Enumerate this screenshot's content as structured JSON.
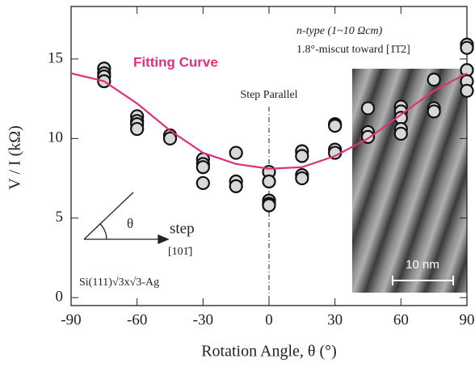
{
  "chart_data": {
    "type": "scatter",
    "x_label": "Rotation Angle, θ (°)",
    "y_label": "V / I (kΩ)",
    "xlim": [
      -90,
      90
    ],
    "ylim": [
      -0.5,
      18.3
    ],
    "xticks": [
      -90,
      -60,
      -30,
      0,
      30,
      60,
      90
    ],
    "yticks": [
      0,
      5,
      10,
      15
    ],
    "annotations": {
      "doping": "n-type (1~10 Ωcm)",
      "miscut": "1.8°-miscut toward [1̄1̄2]",
      "step_parallel": "Step Parallel",
      "angle": "θ",
      "step": "step",
      "direction": "[101̄]",
      "surface": "Si(111)√3x√3-Ag",
      "scale_bar": "10 nm"
    },
    "series": [
      {
        "type": "scatter",
        "color": "#d8d8d8",
        "x": [
          -75,
          -75,
          -75,
          -75,
          -60,
          -60,
          -60,
          -60,
          -45,
          -45,
          -30,
          -30,
          -30,
          -30,
          -15,
          -15,
          -15,
          0,
          0,
          0,
          0,
          0,
          15,
          15,
          15,
          15,
          30,
          30,
          30,
          30,
          45,
          45,
          45,
          60,
          60,
          60,
          60,
          60,
          75,
          75,
          75,
          90,
          90,
          90,
          90,
          90
        ],
        "values": [
          14.4,
          14.1,
          13.9,
          13.6,
          11.4,
          11.1,
          10.9,
          10.6,
          10.2,
          10.0,
          8.7,
          8.4,
          8.2,
          7.2,
          9.1,
          7.3,
          7.0,
          7.9,
          7.3,
          6.1,
          5.9,
          5.8,
          9.2,
          8.9,
          7.7,
          7.5,
          10.9,
          10.8,
          9.3,
          9.1,
          11.9,
          10.4,
          10.1,
          12.0,
          11.7,
          11.3,
          10.6,
          10.3,
          13.7,
          11.9,
          11.7,
          15.9,
          15.7,
          14.3,
          13.6,
          13.0
        ]
      },
      {
        "type": "line",
        "name": "Fitting Curve",
        "color": "#e0307a",
        "x": [
          -90,
          -75,
          -60,
          -45,
          -30,
          -15,
          0,
          15,
          30,
          45,
          60,
          75,
          90
        ],
        "values": [
          14.1,
          13.6,
          12.2,
          10.5,
          9.1,
          8.4,
          8.1,
          8.2,
          8.9,
          10.0,
          11.5,
          13.0,
          14.1
        ]
      }
    ]
  }
}
